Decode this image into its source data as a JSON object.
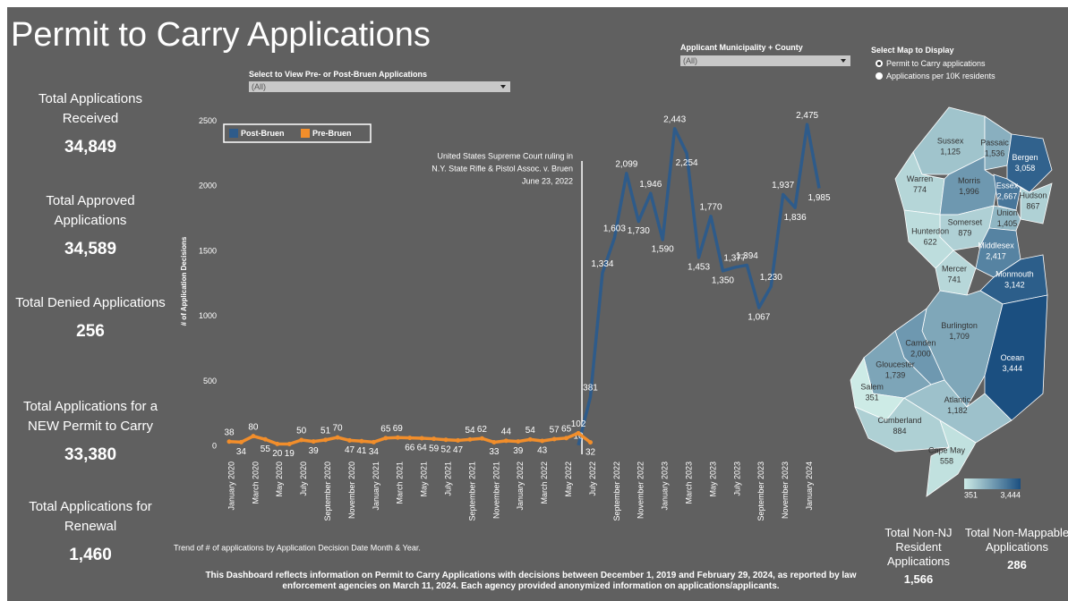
{
  "title": "Permit to Carry Applications",
  "kpis": [
    {
      "label": "Total Applications Received",
      "value": "34,849"
    },
    {
      "label": "Total Approved Applications",
      "value": "34,589"
    },
    {
      "label": "Total Denied Applications",
      "value": "256"
    },
    {
      "label": "Total Applications for a NEW Permit to Carry",
      "value": "33,380"
    },
    {
      "label": "Total Applications for Renewal",
      "value": "1,460"
    }
  ],
  "filters": {
    "bruen": {
      "label": "Select to View Pre-  or Post-Bruen Applications",
      "value": "(All)"
    },
    "municipality": {
      "label": "Applicant Municipality + County",
      "value": "(All)"
    },
    "map_select": {
      "label": "Select Map to Display",
      "options": [
        "Permit to Carry applications",
        "Applications per 10K residents"
      ]
    }
  },
  "chart_data": {
    "type": "line",
    "y_label": "# of Application Decisions",
    "caption": "Trend of # of applications by Application Decision Date Month & Year.",
    "annotation": [
      "United States Supreme Court ruling in",
      "N.Y. State Rifle & Pistol Assoc. v. Bruen",
      "June 23, 2022"
    ],
    "categories": [
      "January 2020",
      null,
      "March 2020",
      null,
      "May 2020",
      null,
      "July 2020",
      null,
      "September 2020",
      null,
      "November 2020",
      null,
      "January 2021",
      null,
      "March 2021",
      null,
      "May 2021",
      null,
      "July 2021",
      null,
      "September 2021",
      null,
      "November 2021",
      null,
      "January 2022",
      null,
      "March 2022",
      null,
      "May 2022",
      null,
      "July 2022",
      null,
      "September 2022",
      null,
      "November 2022",
      null,
      "January 2023",
      null,
      "March 2023",
      null,
      "May 2023",
      null,
      "July 2023",
      null,
      "September 2023",
      null,
      "November 2023",
      null,
      "January 2024",
      null
    ],
    "series": [
      {
        "name": "Post-Bruen",
        "color": "#2e5b8a",
        "values": [
          null,
          null,
          null,
          null,
          null,
          null,
          null,
          null,
          null,
          null,
          null,
          null,
          null,
          null,
          null,
          null,
          null,
          null,
          null,
          null,
          null,
          null,
          null,
          null,
          null,
          null,
          null,
          null,
          null,
          10,
          381,
          1334,
          1603,
          2099,
          1730,
          1946,
          1590,
          2443,
          2254,
          1453,
          1770,
          1350,
          1377,
          1394,
          1067,
          1230,
          1937,
          1836,
          2475,
          1985
        ],
        "value_labels": [
          null,
          null,
          null,
          null,
          null,
          null,
          null,
          null,
          null,
          null,
          null,
          null,
          null,
          null,
          null,
          null,
          null,
          null,
          null,
          null,
          null,
          null,
          null,
          null,
          null,
          null,
          null,
          null,
          null,
          "10",
          "381",
          "1,334",
          "1,603",
          "2,099",
          "1,730",
          "1,946",
          "1,590",
          "2,443",
          "2,254",
          "1,453",
          "1,770",
          "1,350",
          "1,377",
          "1,394",
          "1,067",
          "1,230",
          "1,937",
          "1,836",
          "2,475",
          "1,985"
        ]
      },
      {
        "name": "Pre-Bruen",
        "color": "#f28e2b",
        "values": [
          38,
          34,
          80,
          55,
          20,
          19,
          50,
          39,
          51,
          70,
          47,
          41,
          34,
          65,
          69,
          66,
          64,
          59,
          52,
          47,
          54,
          62,
          33,
          44,
          39,
          54,
          43,
          57,
          65,
          102,
          32,
          null,
          null,
          null,
          null,
          null,
          null,
          null,
          null,
          null,
          null,
          null,
          null,
          null,
          null,
          null,
          null,
          null,
          null,
          null
        ]
      }
    ],
    "ylim": [
      -60,
      2600
    ],
    "yticks": [
      0,
      500,
      1000,
      1500,
      2000,
      2500
    ]
  },
  "map": {
    "counties": [
      {
        "name": "Sussex",
        "value": 1125,
        "label": "1,125"
      },
      {
        "name": "Passaic",
        "value": 1536,
        "label": "1,536"
      },
      {
        "name": "Bergen",
        "value": 3058,
        "label": "3,058"
      },
      {
        "name": "Warren",
        "value": 774,
        "label": "774"
      },
      {
        "name": "Morris",
        "value": 1996,
        "label": "1,996"
      },
      {
        "name": "Essex",
        "value": 2667,
        "label": "2,667"
      },
      {
        "name": "Hudson",
        "value": 867,
        "label": "867"
      },
      {
        "name": "Union",
        "value": 1405,
        "label": "1,405"
      },
      {
        "name": "Somerset",
        "value": 879,
        "label": "879"
      },
      {
        "name": "Hunterdon",
        "value": 622,
        "label": "622"
      },
      {
        "name": "Middlesex",
        "value": 2417,
        "label": "2,417"
      },
      {
        "name": "Mercer",
        "value": 741,
        "label": "741"
      },
      {
        "name": "Monmouth",
        "value": 3142,
        "label": "3,142"
      },
      {
        "name": "Burlington",
        "value": 1709,
        "label": "1,709"
      },
      {
        "name": "Ocean",
        "value": 3444,
        "label": "3,444"
      },
      {
        "name": "Camden",
        "value": 2000,
        "label": "2,000"
      },
      {
        "name": "Gloucester",
        "value": 1739,
        "label": "1,739"
      },
      {
        "name": "Salem",
        "value": 351,
        "label": "351"
      },
      {
        "name": "Atlantic",
        "value": 1182,
        "label": "1,182"
      },
      {
        "name": "Cumberland",
        "value": 884,
        "label": "884"
      },
      {
        "name": "Cape May",
        "value": 558,
        "label": "558"
      }
    ],
    "color_range": [
      {
        "value": 351,
        "label": "351"
      },
      {
        "value": 3444,
        "label": "3,444"
      }
    ]
  },
  "bottom_kpis": [
    {
      "label": "Total Non-NJ Resident Applications",
      "value": "1,566"
    },
    {
      "label": "Total Non-Mappable Applications",
      "value": "286"
    }
  ],
  "footer": "This Dashboard reflects information on Permit to Carry Applications with decisions between December 1, 2019 and February 29, 2024, as reported by law enforcement agencies on March 11, 2024. Each agency provided anonymized information on applications/applicants."
}
